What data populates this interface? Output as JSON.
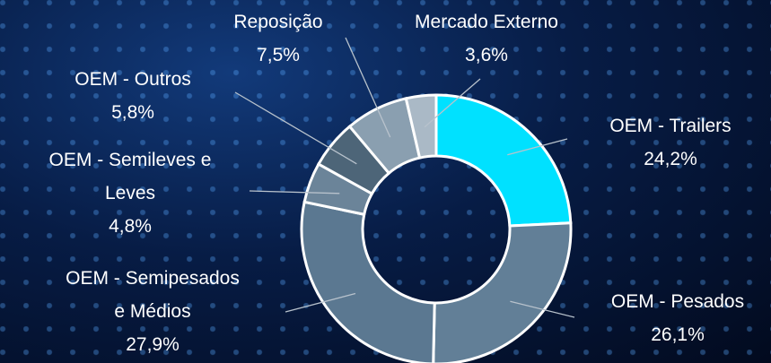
{
  "chart_data": {
    "type": "donut",
    "categories": [
      "OEM - Trailers",
      "OEM - Pesados",
      "OEM - Semipesados e Médios",
      "OEM - Semileves e Leves",
      "OEM - Outros",
      "Reposição",
      "Mercado Externo"
    ],
    "values": [
      24.2,
      26.1,
      27.9,
      4.8,
      5.8,
      7.5,
      3.6
    ],
    "value_labels": [
      "24,2%",
      "26,1%",
      "27,9%",
      "4,8%",
      "5,8%",
      "7,5%",
      "3,6%"
    ],
    "colors": [
      "#00e1ff",
      "#627f97",
      "#5b7891",
      "#6b8499",
      "#4d6578",
      "#8a9fb0",
      "#aab9c6"
    ]
  }
}
